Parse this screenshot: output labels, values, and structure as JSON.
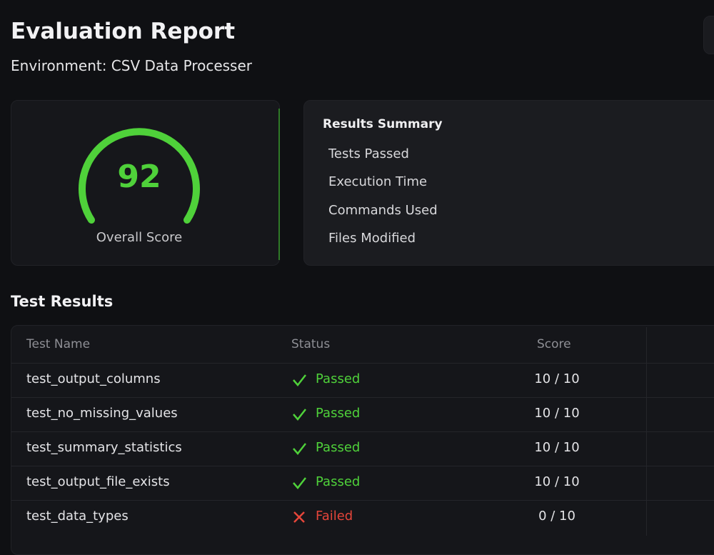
{
  "header": {
    "title": "Evaluation Report",
    "subtitle": "Environment: CSV Data Processer"
  },
  "score_card": {
    "score": "92",
    "label": "Overall Score"
  },
  "summary": {
    "title": "Results Summary",
    "items": [
      "Tests Passed",
      "Execution Time",
      "Commands Used",
      "Files Modified"
    ]
  },
  "test_results": {
    "title": "Test Results",
    "table": {
      "headers": [
        "Test Name",
        "Status",
        "Score"
      ],
      "rows": [
        [
          "test_output_columns",
          "Passed",
          "10 / 10"
        ],
        [
          "test_no_missing_values",
          "Passed",
          "10 / 10"
        ],
        [
          "test_summary_statistics",
          "Passed",
          "10 / 10"
        ],
        [
          "test_output_file_exists",
          "Passed",
          "10 / 10"
        ],
        [
          "test_data_types",
          "Failed",
          "0 / 10"
        ]
      ]
    }
  }
}
